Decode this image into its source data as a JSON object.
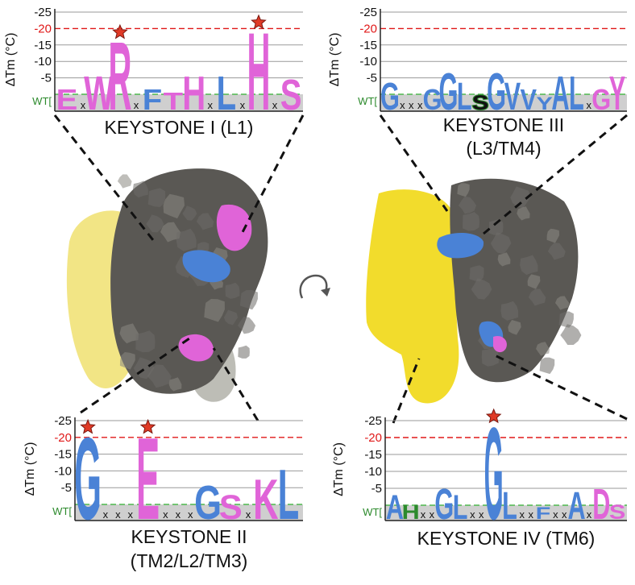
{
  "colors": {
    "pink": "#e064d8",
    "blue": "#4a82d6",
    "green": "#2c8a2c",
    "black": "#1a1a1a",
    "red": "#e01818",
    "grid": "#9a9a9a",
    "wt_line": "#4fb84f",
    "shade": "#cfcfcf",
    "star": "#e03a26",
    "protein_gray": "#5a5854",
    "protein_yellow": "#f2dc2c"
  },
  "axis": {
    "ylabel": "ΔTm (°C)",
    "ticks": [
      "-25",
      "-20",
      "-15",
      "-10",
      "-5"
    ],
    "wt_label": "WT["
  },
  "panels": [
    {
      "id": "keystone-1",
      "title": [
        "KEYSTONE I (L1)"
      ],
      "residues": [
        {
          "letter": "E",
          "color": "pink",
          "value": -5
        },
        {
          "letter": "x",
          "color": "black",
          "value": 0
        },
        {
          "letter": "W",
          "color": "pink",
          "value": -9
        },
        {
          "letter": "R",
          "color": "pink",
          "value": -20,
          "star": true
        },
        {
          "letter": "x",
          "color": "black",
          "value": 0
        },
        {
          "letter": "F",
          "color": "blue",
          "value": -5
        },
        {
          "letter": "T",
          "color": "pink",
          "value": -4
        },
        {
          "letter": "H",
          "color": "pink",
          "value": -9
        },
        {
          "letter": "x",
          "color": "black",
          "value": 0
        },
        {
          "letter": "L",
          "color": "blue",
          "value": -9
        },
        {
          "letter": "x",
          "color": "black",
          "value": 0
        },
        {
          "letter": "H",
          "color": "pink",
          "value": -23,
          "star": true
        },
        {
          "letter": "x",
          "color": "black",
          "value": 0
        },
        {
          "letter": "S",
          "color": "pink",
          "value": -8
        }
      ]
    },
    {
      "id": "keystone-3",
      "title": [
        "KEYSTONE III",
        "(L3/TM4)"
      ],
      "residues": [
        {
          "letter": "G",
          "color": "blue",
          "value": -7
        },
        {
          "letter": "x",
          "color": "black",
          "value": 0
        },
        {
          "letter": "x",
          "color": "black",
          "value": 0
        },
        {
          "letter": "x",
          "color": "black",
          "value": 0
        },
        {
          "letter": "G",
          "color": "blue",
          "value": -5
        },
        {
          "letter": "G",
          "color": "blue",
          "value": -10
        },
        {
          "letter": "L",
          "color": "blue",
          "value": -7
        },
        {
          "letter": "S",
          "color": "green",
          "value": -3,
          "outlined": true
        },
        {
          "letter": "G",
          "color": "blue",
          "value": -10
        },
        {
          "letter": "V",
          "color": "blue",
          "value": -7
        },
        {
          "letter": "V",
          "color": "blue",
          "value": -5
        },
        {
          "letter": "Y",
          "color": "blue",
          "value": -2
        },
        {
          "letter": "A",
          "color": "blue",
          "value": -9
        },
        {
          "letter": "L",
          "color": "blue",
          "value": -9
        },
        {
          "letter": "x",
          "color": "black",
          "value": 0
        },
        {
          "letter": "G",
          "color": "pink",
          "value": -5
        },
        {
          "letter": "Y",
          "color": "pink",
          "value": -9
        }
      ]
    },
    {
      "id": "keystone-2",
      "title": [
        "KEYSTONE II",
        "(TM2/L2/TM3)"
      ],
      "residues": [
        {
          "letter": "G",
          "color": "blue",
          "value": -24,
          "star": true
        },
        {
          "letter": "x",
          "color": "black",
          "value": 0
        },
        {
          "letter": "x",
          "color": "black",
          "value": 0
        },
        {
          "letter": "x",
          "color": "black",
          "value": 0
        },
        {
          "letter": "E",
          "color": "pink",
          "value": -24,
          "star": true
        },
        {
          "letter": "x",
          "color": "black",
          "value": 0
        },
        {
          "letter": "x",
          "color": "black",
          "value": 0
        },
        {
          "letter": "x",
          "color": "black",
          "value": 0
        },
        {
          "letter": "G",
          "color": "blue",
          "value": -9
        },
        {
          "letter": "S",
          "color": "pink",
          "value": -6
        },
        {
          "letter": "x",
          "color": "black",
          "value": 0
        },
        {
          "letter": "K",
          "color": "pink",
          "value": -11
        },
        {
          "letter": "L",
          "color": "blue",
          "value": -14
        }
      ]
    },
    {
      "id": "keystone-4",
      "title": [
        "KEYSTONE IV (TM6)"
      ],
      "residues": [
        {
          "letter": "A",
          "color": "blue",
          "value": -6
        },
        {
          "letter": "H",
          "color": "green",
          "value": -3
        },
        {
          "letter": "x",
          "color": "black",
          "value": 0
        },
        {
          "letter": "x",
          "color": "black",
          "value": 0
        },
        {
          "letter": "G",
          "color": "blue",
          "value": -8
        },
        {
          "letter": "L",
          "color": "blue",
          "value": -6
        },
        {
          "letter": "x",
          "color": "black",
          "value": 0
        },
        {
          "letter": "x",
          "color": "black",
          "value": 0
        },
        {
          "letter": "G",
          "color": "blue",
          "value": -27,
          "star": true
        },
        {
          "letter": "L",
          "color": "blue",
          "value": -7
        },
        {
          "letter": "x",
          "color": "black",
          "value": 0
        },
        {
          "letter": "x",
          "color": "black",
          "value": 0
        },
        {
          "letter": "F",
          "color": "blue",
          "value": -2
        },
        {
          "letter": "x",
          "color": "black",
          "value": 0
        },
        {
          "letter": "x",
          "color": "black",
          "value": 0
        },
        {
          "letter": "A",
          "color": "blue",
          "value": -7
        },
        {
          "letter": "x",
          "color": "black",
          "value": 0
        },
        {
          "letter": "D",
          "color": "pink",
          "value": -8
        },
        {
          "letter": "S",
          "color": "pink",
          "value": -3
        }
      ]
    }
  ]
}
